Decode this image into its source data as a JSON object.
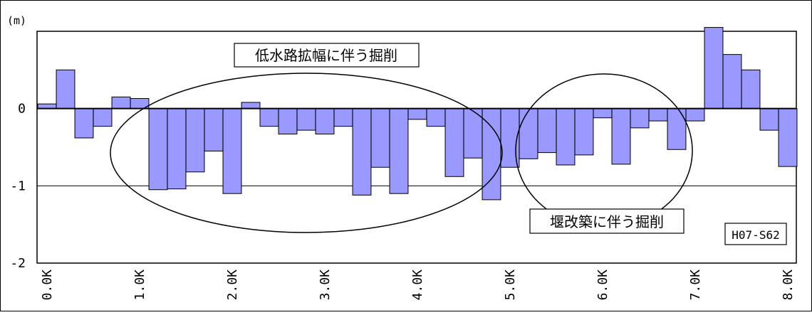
{
  "chart_data": {
    "type": "bar",
    "unit_label": "(m)",
    "ylim": [
      -2,
      1
    ],
    "yticks": [
      {
        "value": 0,
        "label": "0"
      },
      {
        "value": -1,
        "label": "-1"
      },
      {
        "value": -2,
        "label": "-2"
      }
    ],
    "xticks": [
      "0.0K",
      "1.0K",
      "2.0K",
      "3.0K",
      "4.0K",
      "5.0K",
      "6.0K",
      "7.0K",
      "8.0K"
    ],
    "grid": {
      "horizontal": [
        -1
      ],
      "zero_line": true
    },
    "series": [
      {
        "color": "#9999ff",
        "x": [
          0.0,
          0.2,
          0.4,
          0.6,
          0.8,
          1.0,
          1.2,
          1.4,
          1.6,
          1.8,
          2.0,
          2.2,
          2.4,
          2.6,
          2.8,
          3.0,
          3.2,
          3.4,
          3.6,
          3.8,
          4.0,
          4.2,
          4.4,
          4.6,
          4.8,
          5.0,
          5.2,
          5.4,
          5.6,
          5.8,
          6.0,
          6.2,
          6.4,
          6.6,
          6.8,
          7.0,
          7.2,
          7.4,
          7.6,
          7.8,
          8.0
        ],
        "values": [
          0.06,
          0.5,
          -0.38,
          -0.23,
          0.15,
          0.13,
          -1.05,
          -1.04,
          -0.82,
          -0.55,
          -1.1,
          0.08,
          -0.23,
          -0.33,
          -0.28,
          -0.33,
          -0.23,
          -1.12,
          -0.76,
          -1.1,
          -0.14,
          -0.23,
          -0.88,
          -0.64,
          -1.18,
          -0.76,
          -0.65,
          -0.57,
          -0.73,
          -0.6,
          -0.12,
          -0.72,
          -0.25,
          -0.16,
          -0.53,
          -0.16,
          1.05,
          0.7,
          0.5,
          -0.28,
          -0.75
        ]
      }
    ],
    "annotations": [
      {
        "text": "低水路拡幅に伴う掘削"
      },
      {
        "text": "堰改築に伴う掘削"
      },
      {
        "text": "H07-S62"
      }
    ]
  }
}
